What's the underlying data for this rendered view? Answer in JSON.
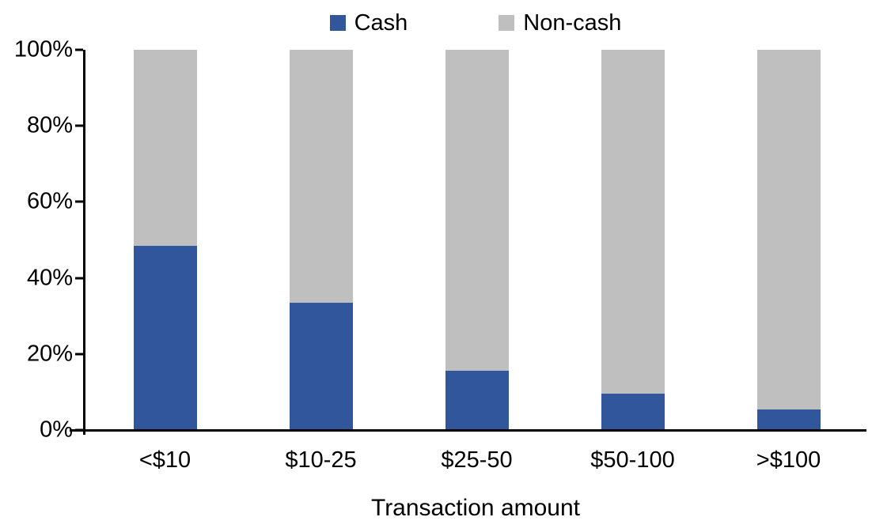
{
  "chart_data": {
    "type": "bar",
    "stacked": true,
    "orientation": "vertical",
    "title": "",
    "xlabel": "Transaction amount",
    "ylabel": "",
    "categories": [
      "<$10",
      "$10-25",
      "$25-50",
      "$50-100",
      ">$100"
    ],
    "series": [
      {
        "name": "Cash",
        "color": "#31569B",
        "values": [
          48.5,
          33.5,
          15.5,
          9.5,
          5.5
        ]
      },
      {
        "name": "Non-cash",
        "color": "#BFBFBF",
        "values": [
          51.5,
          66.5,
          84.5,
          90.5,
          94.5
        ]
      }
    ],
    "ylim": [
      0,
      100
    ],
    "yticks": [
      "0%",
      "20%",
      "40%",
      "60%",
      "80%",
      "100%"
    ],
    "legend_position": "top-center",
    "grid": false,
    "axis_color": "#000000",
    "background_color": "#FFFFFF"
  }
}
